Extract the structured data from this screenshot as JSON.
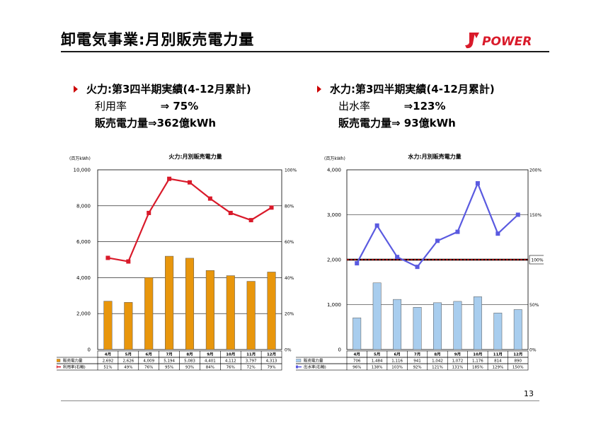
{
  "page": {
    "title": "卸電気事業:月別販売電力量",
    "page_number": "13",
    "logo_text": "POWER"
  },
  "thermal": {
    "heading": "火力:第3四半期実績(4-12月累計)",
    "rate_label": "利用率",
    "rate_value": "⇒ 75%",
    "sales_label": "販売電力量⇒362億kWh"
  },
  "hydro": {
    "heading": "水力:第3四半期実績(4-12月累計)",
    "rate_label": "出水率",
    "rate_value": "⇒123%",
    "sales_label": "販売電力量⇒ 93億kWh"
  },
  "chart_data": [
    {
      "type": "bar",
      "title": "火力:月別販売電力量",
      "unit_label": "(百万kWh)",
      "categories": [
        "4月",
        "5月",
        "6月",
        "7月",
        "8月",
        "9月",
        "10月",
        "11月",
        "12月"
      ],
      "ylim": [
        0,
        10000
      ],
      "y_ticks": [
        "0",
        "2,000",
        "4,000",
        "6,000",
        "8,000",
        "10,000"
      ],
      "y2lim": [
        0,
        100
      ],
      "y2_ticks": [
        "0%",
        "20%",
        "40%",
        "60%",
        "80%",
        "100%"
      ],
      "series": [
        {
          "name": "販売電力量",
          "kind": "bar",
          "color": "#e8960c",
          "values": [
            2692,
            2626,
            4009,
            5194,
            5083,
            4401,
            4112,
            3797,
            4313
          ],
          "labels": [
            "2,692",
            "2,626",
            "4,009",
            "5,194",
            "5,083",
            "4,401",
            "4,112",
            "3,797",
            "4,313"
          ]
        },
        {
          "name": "利用率(右軸)",
          "kind": "line",
          "color": "#d91a2a",
          "axis": "right",
          "values": [
            51,
            49,
            76,
            95,
            93,
            84,
            76,
            72,
            79
          ],
          "labels": [
            "51%",
            "49%",
            "76%",
            "95%",
            "93%",
            "84%",
            "76%",
            "72%",
            "79%"
          ]
        }
      ],
      "grid": true
    },
    {
      "type": "bar",
      "title": "水力:月別販売電力量",
      "unit_label": "(百万kWh)",
      "categories": [
        "4月",
        "5月",
        "6月",
        "7月",
        "8月",
        "9月",
        "10月",
        "11月",
        "12月"
      ],
      "ylim": [
        0,
        4000
      ],
      "y_ticks": [
        "0",
        "1,000",
        "2,000",
        "3,000",
        "4,000"
      ],
      "y2lim": [
        0,
        200
      ],
      "y2_ticks": [
        "0%",
        "50%",
        "100%",
        "150%",
        "200%"
      ],
      "reference_label": "100%",
      "reference_value": 100,
      "series": [
        {
          "name": "販売電力量",
          "kind": "bar",
          "color": "#a8cdee",
          "values": [
            706,
            1484,
            1116,
            941,
            1042,
            1072,
            1176,
            814,
            890
          ],
          "labels": [
            "706",
            "1,484",
            "1,116",
            "941",
            "1,042",
            "1,072",
            "1,176",
            "814",
            "890"
          ]
        },
        {
          "name": "出水率(右軸)",
          "kind": "line",
          "color": "#5a5ae0",
          "axis": "right",
          "values": [
            96,
            138,
            103,
            92,
            121,
            131,
            185,
            129,
            150
          ],
          "labels": [
            "96%",
            "138%",
            "103%",
            "92%",
            "121%",
            "131%",
            "185%",
            "129%",
            "150%"
          ]
        }
      ],
      "grid": true
    }
  ]
}
